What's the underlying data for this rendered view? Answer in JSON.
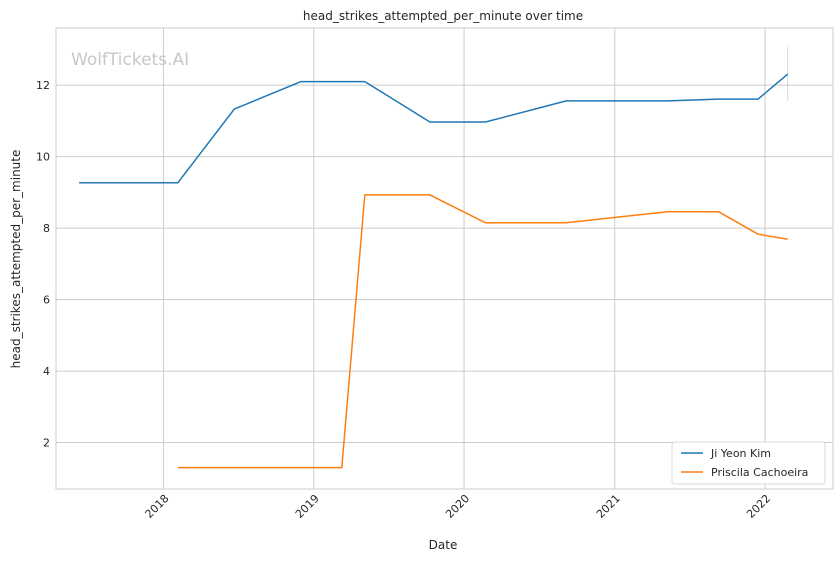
{
  "chart_data": {
    "type": "line",
    "title": "head_strikes_attempted_per_minute over time",
    "xlabel": "Date",
    "ylabel": "head_strikes_attempted_per_minute",
    "watermark": "WolfTickets.AI",
    "xlim": [
      "2017-04-15",
      "2022-06-15"
    ],
    "ylim": [
      0.7,
      13.6
    ],
    "x_ticks": [
      "2018",
      "2019",
      "2020",
      "2021",
      "2022"
    ],
    "y_ticks": [
      2,
      4,
      6,
      8,
      10,
      12
    ],
    "grid": true,
    "legend_position": "lower-right",
    "series": [
      {
        "name": "Ji Yeon Kim",
        "color": "#1f77b4",
        "points": [
          {
            "x": "2017-06-10",
            "y": 9.27
          },
          {
            "x": "2018-02-05",
            "y": 9.27
          },
          {
            "x": "2018-06-22",
            "y": 11.33
          },
          {
            "x": "2018-12-01",
            "y": 12.1
          },
          {
            "x": "2019-05-05",
            "y": 12.1
          },
          {
            "x": "2019-10-10",
            "y": 10.97
          },
          {
            "x": "2020-02-22",
            "y": 10.97
          },
          {
            "x": "2020-09-05",
            "y": 11.56
          },
          {
            "x": "2021-05-10",
            "y": 11.56
          },
          {
            "x": "2021-09-10",
            "y": 11.61
          },
          {
            "x": "2021-12-15",
            "y": 11.61
          },
          {
            "x": "2022-02-25",
            "y": 12.31
          }
        ]
      },
      {
        "name": "Priscila Cachoeira",
        "color": "#ff7f0e",
        "points": [
          {
            "x": "2018-02-05",
            "y": 1.3
          },
          {
            "x": "2019-03-10",
            "y": 1.3
          },
          {
            "x": "2019-05-05",
            "y": 8.93
          },
          {
            "x": "2019-10-10",
            "y": 8.93
          },
          {
            "x": "2020-02-22",
            "y": 8.15
          },
          {
            "x": "2020-09-05",
            "y": 8.15
          },
          {
            "x": "2021-05-10",
            "y": 8.46
          },
          {
            "x": "2021-09-10",
            "y": 8.46
          },
          {
            "x": "2021-12-15",
            "y": 7.83
          },
          {
            "x": "2022-02-25",
            "y": 7.69
          }
        ]
      }
    ]
  }
}
